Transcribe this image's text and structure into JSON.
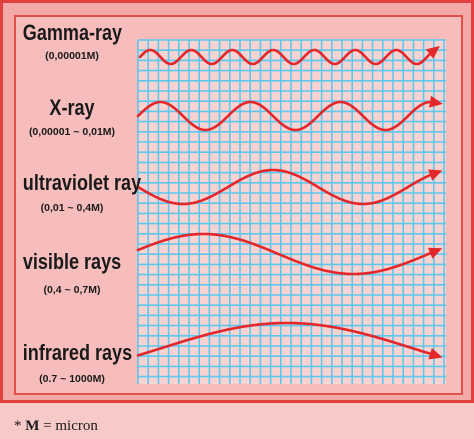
{
  "rays": [
    {
      "name": "Gamma-ray",
      "range": "(0,00001M)"
    },
    {
      "name": "X-ray",
      "range": "(0,00001 ~ 0,01M)"
    },
    {
      "name": "ultraviolet ray",
      "range": "(0,01 ~ 0,4M)"
    },
    {
      "name": "visible rays",
      "range": "(0,4 ~ 0,7M)"
    },
    {
      "name": "infrared rays",
      "range": "(0.7 ~ 1000M)"
    }
  ],
  "footnote": {
    "star": "*",
    "symbol": "M",
    "text": " = micron"
  },
  "colors": {
    "grid_line": "#5cc8ee",
    "grid_fill": "#f8d3d1",
    "wave": "#e5262a",
    "border": "#e0403e"
  }
}
